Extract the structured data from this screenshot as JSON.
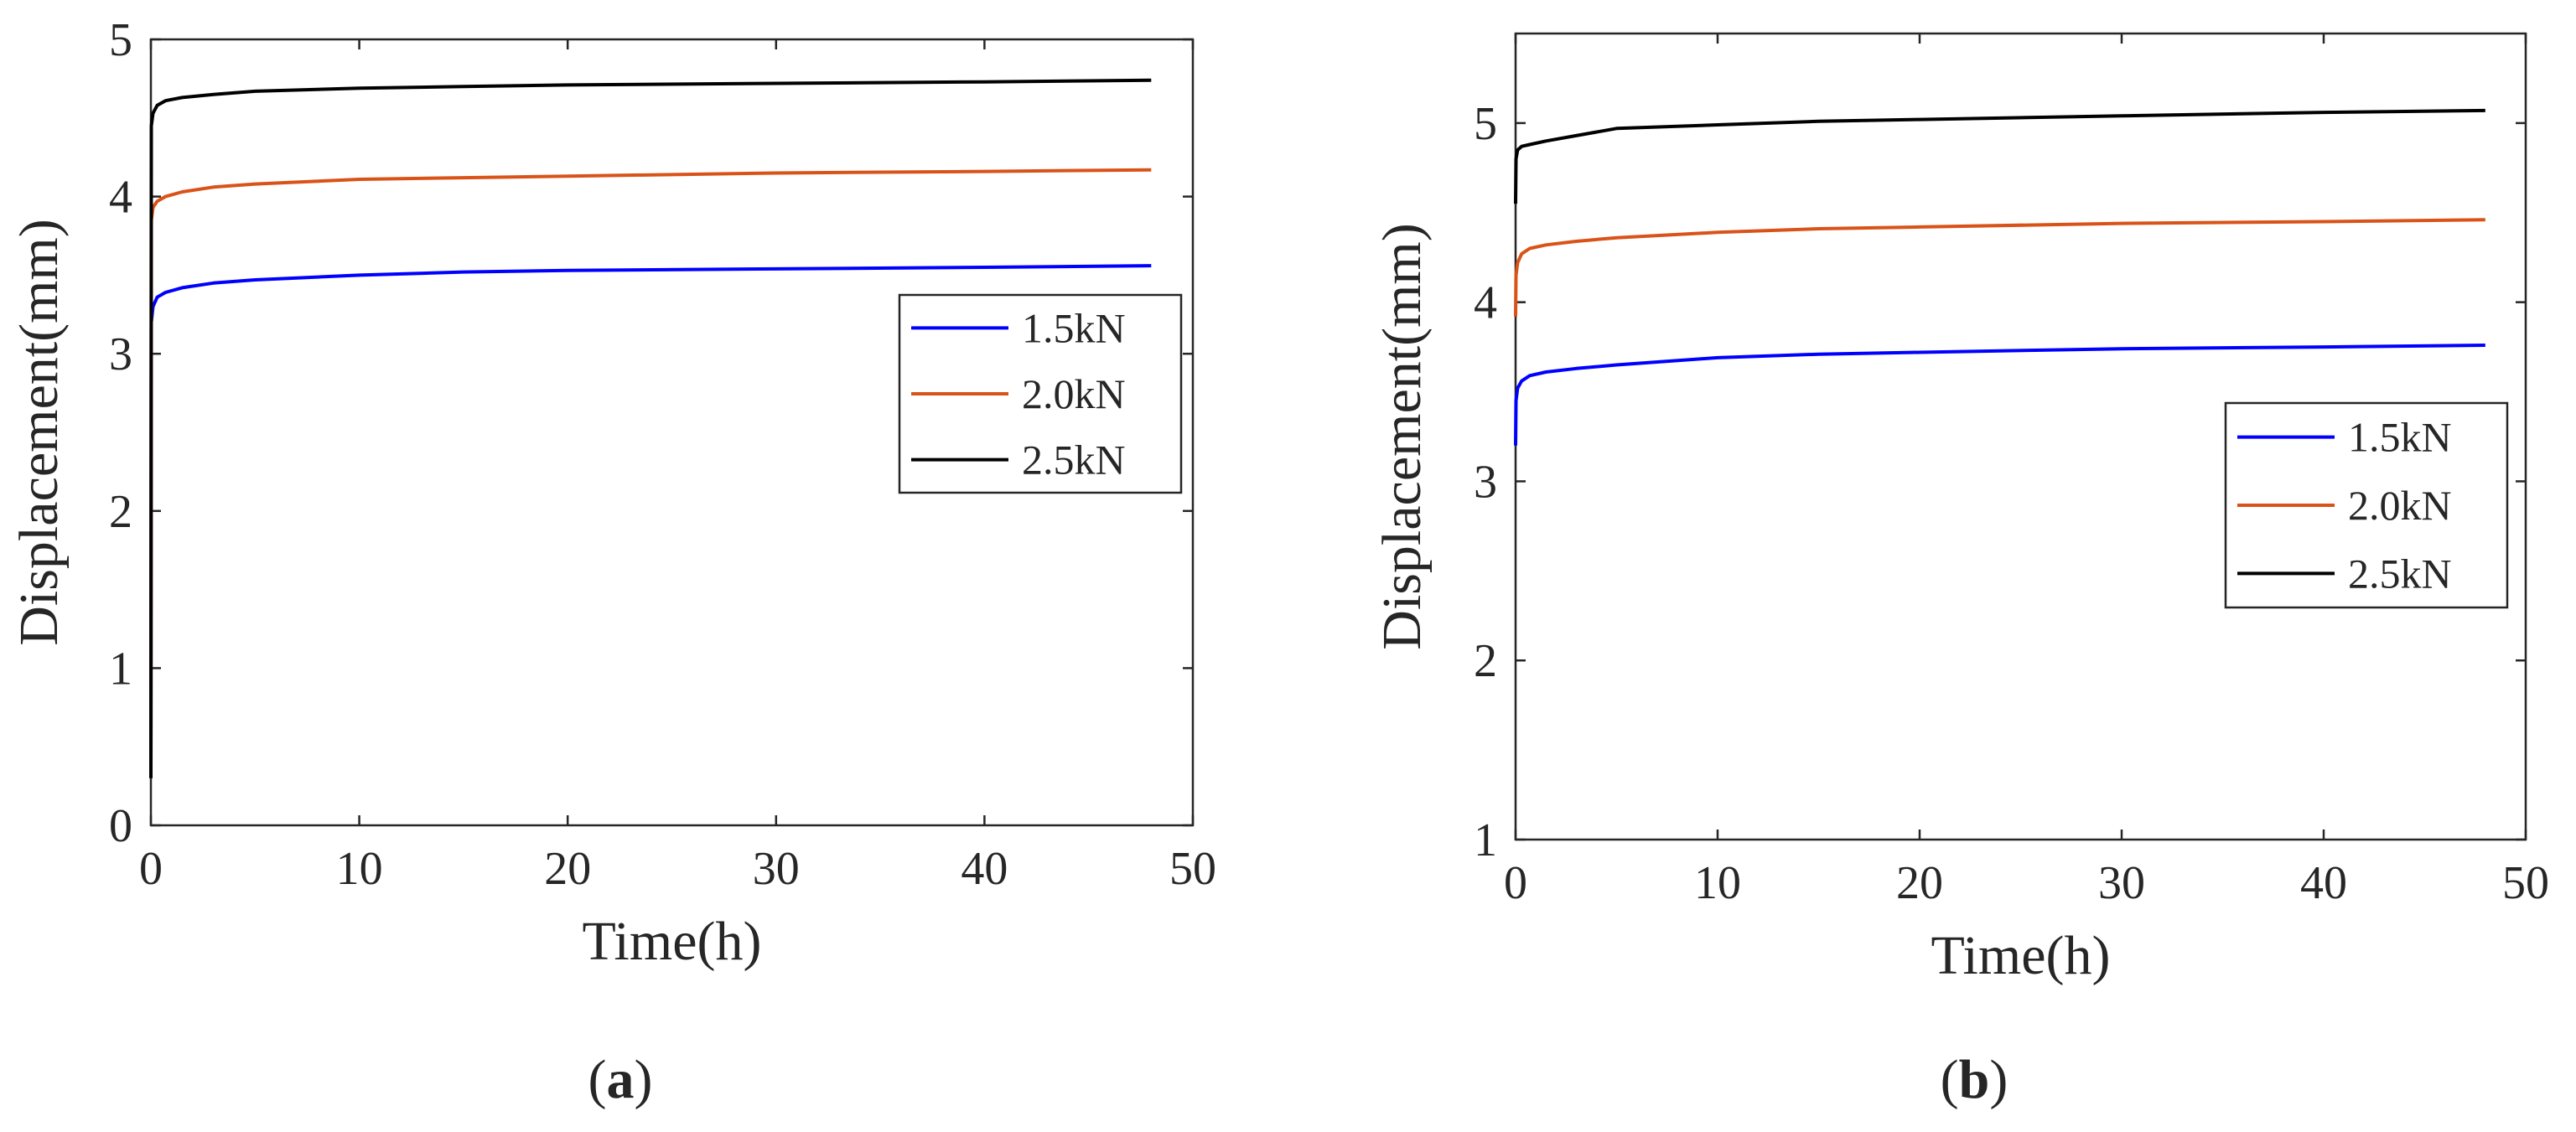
{
  "chart_data": [
    {
      "type": "line",
      "panel": "a",
      "caption": "(a)",
      "caption_letter": "a",
      "xlabel": "Time(h)",
      "ylabel": "Displacement(mm)",
      "xlim": [
        0,
        50
      ],
      "ylim": [
        0,
        5
      ],
      "xticks": [
        0,
        10,
        20,
        30,
        40,
        50
      ],
      "yticks": [
        0,
        1,
        2,
        3,
        4,
        5
      ],
      "grid": false,
      "legend_position": "right-middle",
      "series": [
        {
          "name": "1.5kN",
          "color": "#0000ff",
          "x": [
            0,
            0.02,
            0.1,
            0.3,
            0.7,
            1.5,
            3,
            5,
            10,
            15,
            20,
            30,
            40,
            48
          ],
          "y": [
            0.3,
            3.2,
            3.3,
            3.36,
            3.39,
            3.42,
            3.45,
            3.47,
            3.5,
            3.52,
            3.53,
            3.54,
            3.55,
            3.56
          ]
        },
        {
          "name": "2.0kN",
          "color": "#d95319",
          "x": [
            0,
            0.02,
            0.1,
            0.3,
            0.7,
            1.5,
            3,
            5,
            10,
            15,
            20,
            30,
            40,
            48
          ],
          "y": [
            0.3,
            3.85,
            3.93,
            3.97,
            4.0,
            4.03,
            4.06,
            4.08,
            4.11,
            4.12,
            4.13,
            4.15,
            4.16,
            4.17
          ]
        },
        {
          "name": "2.5kN",
          "color": "#000000",
          "x": [
            0,
            0.02,
            0.1,
            0.3,
            0.7,
            1.5,
            3,
            5,
            10,
            15,
            20,
            30,
            40,
            48
          ],
          "y": [
            0.3,
            4.45,
            4.53,
            4.58,
            4.61,
            4.63,
            4.65,
            4.67,
            4.69,
            4.7,
            4.71,
            4.72,
            4.73,
            4.74
          ]
        }
      ]
    },
    {
      "type": "line",
      "panel": "b",
      "caption": "(b)",
      "caption_letter": "b",
      "xlabel": "Time(h)",
      "ylabel": "Displacement(mm)",
      "xlim": [
        0,
        50
      ],
      "ylim": [
        1,
        5.5
      ],
      "xticks": [
        0,
        10,
        20,
        30,
        40,
        50
      ],
      "yticks": [
        1,
        2,
        3,
        4,
        5
      ],
      "grid": false,
      "legend_position": "right-middle",
      "series": [
        {
          "name": "1.5kN",
          "color": "#0000ff",
          "x": [
            0,
            0.02,
            0.1,
            0.3,
            0.7,
            1.5,
            3,
            5,
            10,
            15,
            20,
            30,
            40,
            48
          ],
          "y": [
            3.2,
            3.45,
            3.52,
            3.56,
            3.59,
            3.61,
            3.63,
            3.65,
            3.69,
            3.71,
            3.72,
            3.74,
            3.75,
            3.76
          ]
        },
        {
          "name": "2.0kN",
          "color": "#d95319",
          "x": [
            0,
            0.02,
            0.1,
            0.3,
            0.7,
            1.5,
            3,
            5,
            10,
            15,
            20,
            30,
            40,
            48
          ],
          "y": [
            3.92,
            4.15,
            4.22,
            4.27,
            4.3,
            4.32,
            4.34,
            4.36,
            4.39,
            4.41,
            4.42,
            4.44,
            4.45,
            4.46
          ]
        },
        {
          "name": "2.5kN",
          "color": "#000000",
          "x": [
            0,
            0.02,
            0.1,
            0.3,
            0.7,
            1.5,
            3,
            5,
            10,
            15,
            20,
            30,
            40,
            48
          ],
          "y": [
            4.55,
            4.8,
            4.85,
            4.87,
            4.88,
            4.9,
            4.93,
            4.97,
            4.99,
            5.01,
            5.02,
            5.04,
            5.06,
            5.07
          ]
        }
      ]
    }
  ]
}
